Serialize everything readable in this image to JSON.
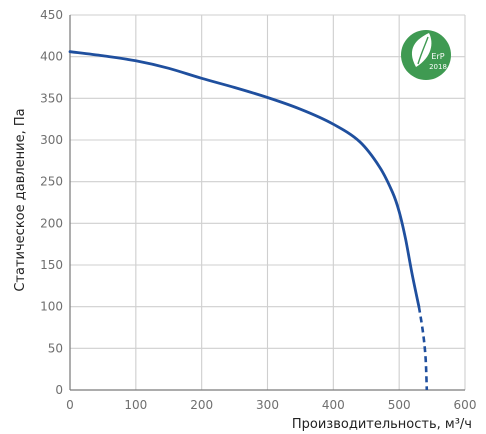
{
  "chart_data": {
    "type": "line",
    "xlabel": "Производительность, м³/ч",
    "ylabel": "Статическое давление, Па",
    "xlim": [
      0,
      600
    ],
    "ylim": [
      0,
      450
    ],
    "xticks": [
      0,
      100,
      200,
      300,
      400,
      500,
      600
    ],
    "yticks": [
      0,
      50,
      100,
      150,
      200,
      250,
      300,
      350,
      400,
      450
    ],
    "grid": true,
    "series": [
      {
        "segment": "solid",
        "x": [
          0,
          50,
          100,
          150,
          200,
          250,
          300,
          350,
          400,
          440,
          470,
          490,
          500,
          510,
          520,
          530
        ],
        "y": [
          406,
          401,
          395,
          386,
          374,
          363,
          351,
          337,
          319,
          298,
          268,
          237,
          214,
          180,
          138,
          100
        ]
      },
      {
        "segment": "dashed",
        "x": [
          530,
          536,
          540,
          542
        ],
        "y": [
          100,
          70,
          40,
          0
        ]
      }
    ],
    "color": "#1f4f9e",
    "badge": {
      "text_line1": "ErP",
      "text_line2": "2018",
      "icon": "leaf-icon",
      "color": "#3f9a52"
    }
  }
}
